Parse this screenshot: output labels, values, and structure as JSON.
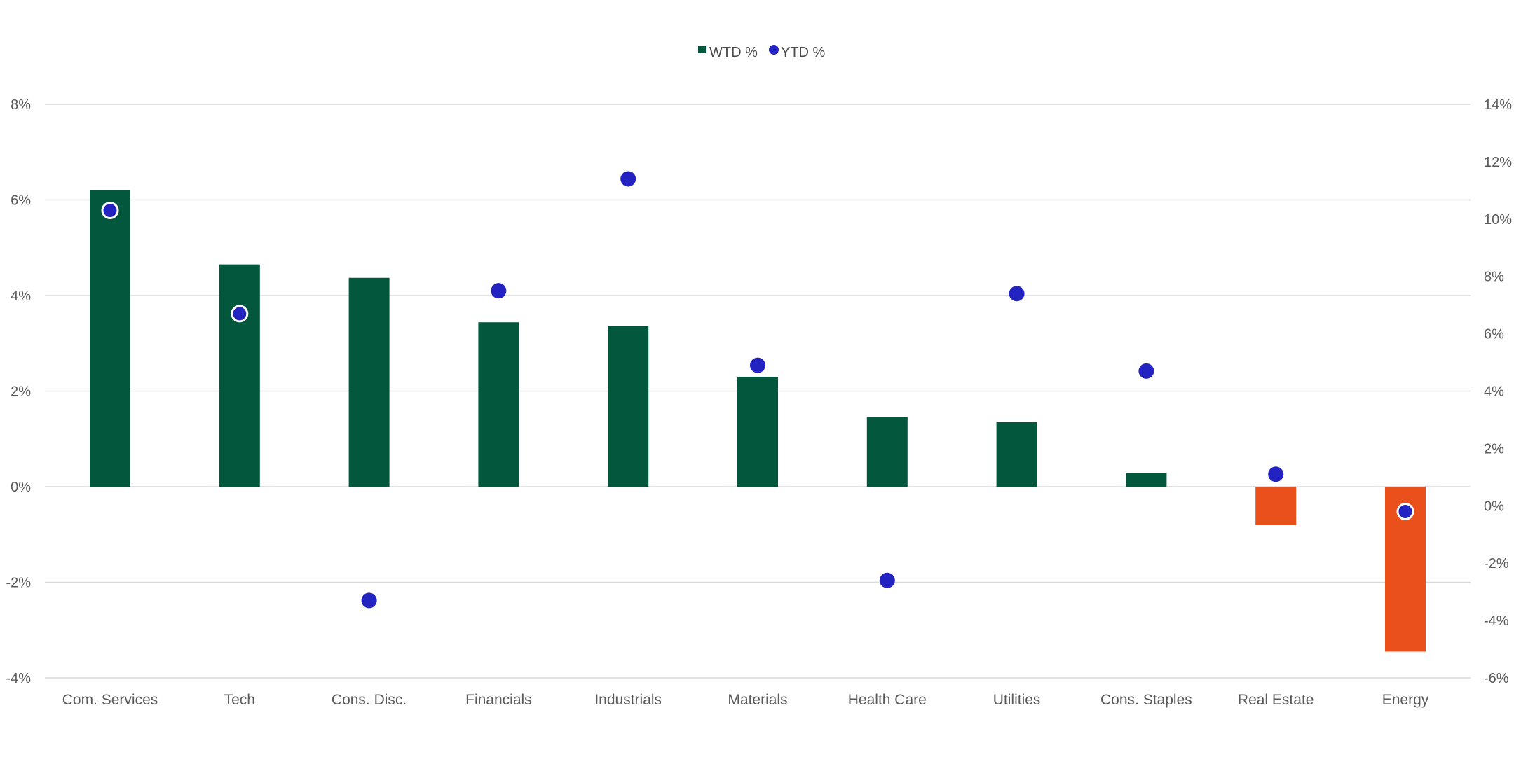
{
  "chart_data": {
    "type": "bar",
    "categories": [
      "Com. Services",
      "Tech",
      "Cons. Disc.",
      "Financials",
      "Industrials",
      "Materials",
      "Health Care",
      "Utilities",
      "Cons. Staples",
      "Real Estate",
      "Energy"
    ],
    "series": [
      {
        "name": "WTD %",
        "type": "bar",
        "axis": "left",
        "values": [
          6.2,
          4.65,
          4.37,
          3.44,
          3.37,
          2.3,
          1.46,
          1.35,
          0.29,
          -0.8,
          -3.45
        ]
      },
      {
        "name": "YTD %",
        "type": "scatter",
        "axis": "right",
        "values": [
          10.3,
          6.7,
          -3.3,
          7.5,
          11.4,
          4.9,
          -2.6,
          7.4,
          4.7,
          1.1,
          -0.2
        ]
      }
    ],
    "ylim_left": [
      -4,
      8
    ],
    "yticks_left": [
      -4,
      -2,
      0,
      2,
      4,
      6,
      8
    ],
    "ytick_labels_left": [
      "-4%",
      "-2%",
      "0%",
      "2%",
      "4%",
      "6%",
      "8%"
    ],
    "ylim_right": [
      -6,
      14
    ],
    "yticks_right": [
      -6,
      -4,
      -2,
      0,
      2,
      4,
      6,
      8,
      10,
      12,
      14
    ],
    "ytick_labels_right": [
      "-6%",
      "-4%",
      "-2%",
      "0%",
      "2%",
      "4%",
      "6%",
      "8%",
      "10%",
      "12%",
      "14%"
    ],
    "grid": true,
    "legend_position": "top-center",
    "colors": {
      "positive_bar": "#02573d",
      "negative_bar": "#e9501c",
      "dot": "#2323c2",
      "dot_outline": "#ffffff"
    }
  }
}
